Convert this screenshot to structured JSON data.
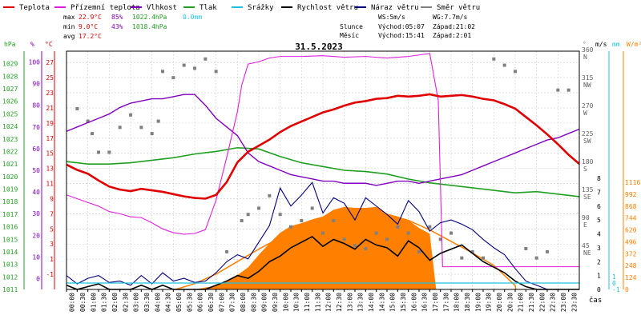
{
  "legend": [
    {
      "label": "Teplota",
      "color": "#e00000"
    },
    {
      "label": "Přízemní teplota",
      "color": "#e020e0"
    },
    {
      "label": "Vlhkost",
      "color": "#8000c0"
    },
    {
      "label": "Tlak",
      "color": "#20a020"
    },
    {
      "label": "Srážky",
      "color": "#20c0e0"
    },
    {
      "label": "Rychlost větru",
      "color": "#000000"
    },
    {
      "label": "Náraz větru",
      "color": "#000080"
    },
    {
      "label": "Směr větru",
      "color": "#808080"
    }
  ],
  "stats": {
    "max_label": "max",
    "max_temp": "22.9°C",
    "max_hum": "85%",
    "max_press": "1022.4hPa",
    "max_rain": "0.0mm",
    "min_label": "min",
    "min_temp": "9.0°C",
    "min_hum": "43%",
    "min_press": "1018.4hPa",
    "avg_label": "avg",
    "avg_temp": "17.2°C"
  },
  "wind_info": {
    "ws": "WS:5m/s",
    "wg": "WG:7.7m/s"
  },
  "sun": {
    "label": "Slunce",
    "rise": "Východ:05:07",
    "set": "Západ:21:02"
  },
  "moon": {
    "label": "Měsíc",
    "rise": "Východ:15:41",
    "set": "Západ:2:01"
  },
  "axis_units": {
    "hpa": "hPa",
    "pct": "%",
    "degc": "°C",
    "deg": "°",
    "ms": "m/s",
    "mm": "mm",
    "wm2": "W/m²",
    "cas": "čas"
  },
  "colors": {
    "temp": "#e00000",
    "ground": "#e020e0",
    "hum": "#8000c0",
    "press": "#20a020",
    "rain": "#20c0e0",
    "wind": "#000000",
    "gust": "#000080",
    "dir": "#808080",
    "solar": "#ff8000",
    "sun_curve": "#ff8000",
    "grid": "#cccccc"
  },
  "chart_data": {
    "type": "line",
    "title": "31.5.2023",
    "x_unit": "time",
    "x_ticks": [
      "00:00",
      "00:30",
      "01:00",
      "01:30",
      "02:00",
      "02:30",
      "03:00",
      "03:30",
      "04:00",
      "04:30",
      "05:00",
      "05:30",
      "06:00",
      "06:30",
      "07:00",
      "07:30",
      "08:00",
      "08:30",
      "09:00",
      "09:30",
      "10:00",
      "10:30",
      "11:00",
      "11:30",
      "12:00",
      "12:30",
      "13:00",
      "13:30",
      "14:00",
      "14:30",
      "15:00",
      "15:30",
      "16:00",
      "16:30",
      "17:00",
      "17:30",
      "18:00",
      "18:30",
      "19:00",
      "19:30",
      "20:00",
      "20:30",
      "21:00",
      "21:30",
      "22:00",
      "22:30",
      "23:00",
      "23:30"
    ],
    "axes": {
      "pressure_hpa": {
        "ylim": [
          1011,
          1030
        ],
        "ticks": [
          1011,
          1012,
          1013,
          1014,
          1015,
          1016,
          1017,
          1018,
          1019,
          1020,
          1021,
          1022,
          1023,
          1024,
          1025,
          1026,
          1027,
          1028,
          1029
        ]
      },
      "humidity_pct": {
        "ylim": [
          -5,
          105
        ],
        "ticks": [
          0,
          10,
          20,
          30,
          40,
          50,
          60,
          70,
          80,
          90,
          100
        ]
      },
      "temperature_c": {
        "ylim": [
          -3,
          28.5
        ],
        "ticks": [
          -1,
          1,
          3,
          5,
          7,
          9,
          11,
          13,
          15,
          17,
          19,
          21,
          23,
          25,
          27
        ]
      },
      "wind_dir_deg": {
        "ticks": [
          {
            "v": 45,
            "l": "45",
            "d": "NE"
          },
          {
            "v": 90,
            "l": "90",
            "d": "E"
          },
          {
            "v": 135,
            "l": "135",
            "d": "SE"
          },
          {
            "v": 180,
            "l": "180",
            "d": "S"
          },
          {
            "v": 225,
            "l": "225",
            "d": "SW"
          },
          {
            "v": 270,
            "l": "270",
            "d": "W"
          },
          {
            "v": 315,
            "l": "315",
            "d": "NW"
          },
          {
            "v": 360,
            "l": "360",
            "d": "N"
          }
        ]
      },
      "wind_ms": {
        "ylim": [
          0,
          8
        ],
        "ticks": [
          0,
          1,
          2,
          3,
          4,
          5,
          6,
          7,
          8
        ]
      },
      "rain_mm": {
        "ticks": [
          -1,
          0,
          1
        ]
      },
      "solar_wm2": {
        "ylim": [
          0,
          1116
        ],
        "ticks": [
          0,
          124,
          248,
          372,
          496,
          620,
          744,
          868,
          992,
          1116
        ]
      }
    },
    "series": [
      {
        "name": "Teplota",
        "unit": "°C",
        "x": [
          0,
          0.5,
          1,
          1.5,
          2,
          2.5,
          3,
          3.5,
          4,
          4.5,
          5,
          5.5,
          6,
          6.5,
          7,
          7.5,
          8,
          8.5,
          9,
          9.5,
          10,
          10.5,
          11,
          11.5,
          12,
          12.5,
          13,
          13.5,
          14,
          14.5,
          15,
          15.5,
          16,
          16.5,
          17,
          17.5,
          18,
          18.5,
          19,
          19.5,
          20,
          20.5,
          21,
          21.5,
          22,
          22.5,
          23,
          23.5,
          24
        ],
        "y": [
          13.5,
          12.8,
          12.3,
          11.4,
          10.6,
          10.2,
          10.0,
          10.3,
          10.1,
          9.9,
          9.6,
          9.3,
          9.1,
          9.0,
          9.5,
          11.2,
          13.8,
          15.2,
          16.0,
          16.8,
          17.8,
          18.6,
          19.2,
          19.8,
          20.4,
          20.8,
          21.3,
          21.7,
          21.9,
          22.2,
          22.3,
          22.6,
          22.5,
          22.6,
          22.8,
          22.5,
          22.6,
          22.7,
          22.5,
          22.2,
          22.0,
          21.5,
          20.9,
          19.8,
          18.7,
          17.5,
          16.2,
          14.8,
          13.6
        ]
      },
      {
        "name": "Přízemní teplota",
        "unit": "°C",
        "x": [
          0,
          0.5,
          1,
          1.5,
          2,
          2.5,
          3,
          3.5,
          4,
          4.5,
          5,
          5.5,
          6,
          6.5,
          7,
          7.5,
          8,
          8.2,
          8.5,
          9,
          9.5,
          10,
          11,
          12,
          13,
          14,
          15,
          16,
          17,
          17.4,
          17.6,
          18,
          19,
          20,
          21,
          22,
          23,
          24
        ],
        "y": [
          9.5,
          9.0,
          8.5,
          8.0,
          7.3,
          7.0,
          6.6,
          6.5,
          5.8,
          5.0,
          4.5,
          4.3,
          4.4,
          4.9,
          8.8,
          14.5,
          20.5,
          24.0,
          26.8,
          27.1,
          27.6,
          27.8,
          27.8,
          27.9,
          27.7,
          27.8,
          27.6,
          27.8,
          28.2,
          22.0,
          0.0,
          0.0,
          0.0,
          0.0,
          0.0,
          0.0,
          0.0,
          0.0
        ]
      },
      {
        "name": "Vlhkost",
        "unit": "%",
        "x": [
          0,
          0.5,
          1,
          1.5,
          2,
          2.5,
          3,
          3.5,
          4,
          4.5,
          5,
          5.5,
          6,
          6.5,
          7,
          7.5,
          8,
          8.5,
          9,
          9.5,
          10,
          10.5,
          11,
          11.5,
          12,
          12.5,
          13,
          13.5,
          14,
          14.5,
          15,
          15.5,
          16,
          16.5,
          17,
          17.5,
          18,
          18.5,
          19,
          19.5,
          20,
          20.5,
          21,
          21.5,
          22,
          22.5,
          23,
          23.5,
          24
        ],
        "y": [
          68,
          70,
          72,
          74,
          76,
          79,
          81,
          82,
          83,
          83,
          84,
          85,
          85,
          80,
          74,
          70,
          66,
          58,
          54,
          52,
          50,
          48,
          47,
          46,
          45,
          45,
          44,
          44,
          44,
          43,
          44,
          45,
          45,
          44,
          45,
          46,
          47,
          48,
          50,
          52,
          54,
          56,
          58,
          60,
          62,
          64,
          65,
          67,
          69
        ]
      },
      {
        "name": "Tlak",
        "unit": "hPa",
        "x": [
          0,
          1,
          2,
          3,
          4,
          5,
          6,
          7,
          8,
          9,
          10,
          11,
          12,
          13,
          14,
          15,
          16,
          17,
          18,
          19,
          20,
          21,
          22,
          23,
          24
        ],
        "y": [
          1021.2,
          1021.0,
          1021.0,
          1021.1,
          1021.3,
          1021.5,
          1021.8,
          1022.0,
          1022.3,
          1022.2,
          1021.6,
          1021.1,
          1020.8,
          1020.5,
          1020.4,
          1020.2,
          1019.8,
          1019.5,
          1019.3,
          1019.1,
          1018.9,
          1018.7,
          1018.8,
          1018.6,
          1018.4
        ]
      },
      {
        "name": "Srážky",
        "unit": "mm",
        "x": [
          0,
          24
        ],
        "y": [
          0.0,
          0.0
        ]
      },
      {
        "name": "Rychlost větru",
        "unit": "m/s",
        "x": [
          0,
          0.5,
          1,
          1.5,
          2,
          2.5,
          3,
          3.5,
          4,
          4.5,
          5,
          5.5,
          6,
          6.5,
          7,
          7.5,
          8,
          8.5,
          9,
          9.5,
          10,
          10.5,
          11,
          11.5,
          12,
          12.5,
          13,
          13.5,
          14,
          14.5,
          15,
          15.5,
          16,
          16.5,
          17,
          17.5,
          18,
          18.5,
          19,
          19.5,
          20,
          20.5,
          21,
          21.5,
          22,
          22.5,
          23,
          23.5,
          24
        ],
        "y": [
          0.3,
          0,
          0.2,
          0.4,
          0,
          0,
          0,
          0.3,
          0,
          0.3,
          0,
          0,
          0,
          0,
          0.3,
          0.6,
          1.0,
          0.8,
          1.3,
          2.0,
          2.4,
          3.0,
          3.4,
          3.8,
          3.1,
          3.6,
          3.3,
          2.9,
          3.6,
          3.2,
          3.0,
          2.4,
          3.5,
          3.0,
          2.1,
          2.6,
          2.9,
          3.2,
          2.6,
          2.0,
          1.6,
          1.2,
          0.6,
          0.2,
          0,
          0,
          0,
          0,
          0
        ]
      },
      {
        "name": "Náraz větru",
        "unit": "m/s",
        "x": [
          0,
          0.5,
          1,
          1.5,
          2,
          2.5,
          3,
          3.5,
          4,
          4.5,
          5,
          5.5,
          6,
          6.5,
          7,
          7.5,
          8,
          8.5,
          9,
          9.5,
          10,
          10.5,
          11,
          11.5,
          12,
          12.5,
          13,
          13.5,
          14,
          14.5,
          15,
          15.5,
          16,
          16.5,
          17,
          17.5,
          18,
          18.5,
          19,
          19.5,
          20,
          20.5,
          21,
          21.5,
          22,
          22.5,
          23,
          23.5,
          24
        ],
        "y": [
          1.0,
          0.4,
          0.8,
          1.0,
          0.5,
          0.6,
          0.3,
          1.0,
          0.4,
          1.2,
          0.6,
          0.8,
          0.5,
          0.6,
          1.2,
          2.0,
          2.5,
          2.2,
          3.4,
          4.6,
          7.3,
          6.0,
          6.8,
          7.7,
          5.5,
          6.6,
          6.2,
          5.0,
          6.6,
          6.0,
          5.4,
          4.7,
          6.4,
          5.6,
          4.2,
          4.8,
          5.0,
          4.7,
          4.3,
          3.6,
          3.0,
          2.5,
          1.5,
          0.6,
          0.3,
          0,
          0,
          0,
          0
        ]
      },
      {
        "name": "Směr větru",
        "unit": "°",
        "x": [
          0.5,
          1,
          1.2,
          1.5,
          2,
          2.5,
          3,
          3.5,
          4,
          4.3,
          4.5,
          5,
          5.5,
          6,
          6.5,
          7,
          7.5,
          8.2,
          8.5,
          9,
          9.5,
          10,
          10.5,
          11,
          11.5,
          12,
          12.5,
          13,
          13.5,
          14,
          14.5,
          15,
          15.5,
          16,
          16.5,
          17,
          17.5,
          18,
          18.5,
          19,
          19.5,
          20,
          20.5,
          21,
          21.5,
          22,
          22.5,
          23,
          23.5
        ],
        "y": [
          270,
          250,
          230,
          200,
          200,
          240,
          260,
          240,
          230,
          250,
          330,
          320,
          340,
          335,
          350,
          330,
          40,
          90,
          100,
          110,
          130,
          100,
          80,
          90,
          110,
          70,
          90,
          60,
          50,
          45,
          70,
          60,
          80,
          70,
          40,
          80,
          60,
          70,
          30,
          40,
          30,
          350,
          340,
          330,
          45,
          30,
          40,
          300,
          300
        ]
      },
      {
        "name": "Solar",
        "unit": "W/m²",
        "x": [
          6,
          7,
          8,
          8.5,
          9,
          9.5,
          10,
          10.5,
          11,
          11.5,
          12,
          12.5,
          13,
          13.5,
          14,
          14.5,
          15,
          15.5,
          16,
          16.5,
          17,
          17.3
        ],
        "y": [
          0,
          40,
          150,
          230,
          360,
          480,
          590,
          660,
          690,
          730,
          760,
          830,
          860,
          850,
          850,
          860,
          790,
          760,
          720,
          640,
          580,
          0
        ]
      },
      {
        "name": "Sun elevation curve",
        "unit": "W/m²",
        "x": [
          5.1,
          6,
          7,
          8,
          9,
          10,
          11,
          12,
          13,
          14,
          15,
          16,
          17,
          18,
          19,
          20,
          21,
          21.03
        ],
        "y": [
          0,
          60,
          160,
          290,
          420,
          540,
          640,
          720,
          775,
          800,
          780,
          720,
          620,
          500,
          380,
          250,
          40,
          0
        ]
      }
    ],
    "grid": true
  }
}
